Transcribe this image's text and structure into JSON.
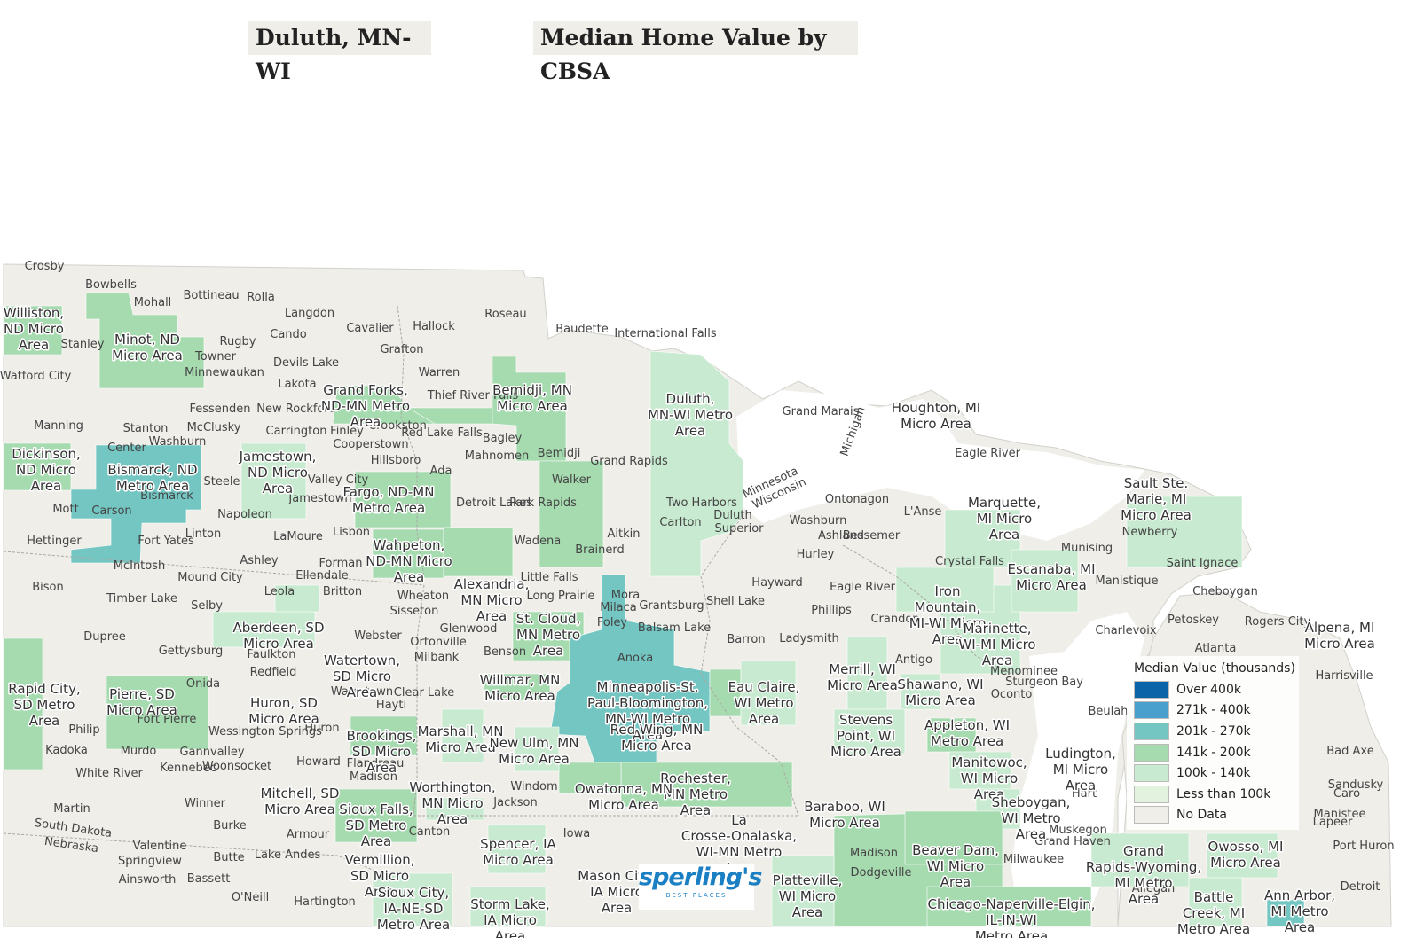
{
  "header": {
    "location": "Duluth, MN-WI",
    "map_title": "Median Home Value by CBSA"
  },
  "legend": {
    "title": "Median Value (thousands)",
    "items": [
      {
        "label": "Over 400k",
        "color": "#0b64a8"
      },
      {
        "label": "271k - 400k",
        "color": "#4aa0cc"
      },
      {
        "label": "201k - 270k",
        "color": "#74c6c2"
      },
      {
        "label": "141k - 200k",
        "color": "#a6dbb0"
      },
      {
        "label": "100k - 140k",
        "color": "#c8ead0"
      },
      {
        "label": "Less than 100k",
        "color": "#e3f2df"
      },
      {
        "label": "No Data",
        "color": "#efeee9"
      }
    ]
  },
  "logo": {
    "name": "sperling's",
    "tagline": "BEST PLACES"
  },
  "colors": {
    "land": "#efeee9",
    "water": "#ffffff",
    "border": "#b9b8b2"
  },
  "cbsa_labels": [
    "Williston, ND Micro Area",
    "Minot, ND Micro Area",
    "Grand Forks, ND-MN Metro Area",
    "Bemidji, MN Micro Area",
    "Duluth, MN-WI Metro Area",
    "Houghton, MI Micro Area",
    "Dickinson, ND Micro Area",
    "Bismarck, ND Metro Area",
    "Jamestown, ND Micro Area",
    "Fargo, ND-MN Metro Area",
    "Wahpeton, ND-MN Micro Area",
    "Alexandria, MN Micro Area",
    "Marquette, MI Micro Area",
    "Sault Ste. Marie, MI Micro Area",
    "Escanaba, MI Micro Area",
    "Iron Mountain, MI-WI Micro Area",
    "Marinette, WI-MI Micro Area",
    "Alpena, MI Micro Area",
    "St. Cloud, MN Metro Area",
    "Aberdeen, SD Micro Area",
    "Watertown, SD Micro Area",
    "Minneapolis-St. Paul-Bloomington, MN-WI Metro Area",
    "Eau Claire, WI Metro Area",
    "Merrill, WI Micro Area",
    "Shawano, WI Micro Area",
    "Rapid City, SD Metro Area",
    "Pierre, SD Micro Area",
    "Huron, SD Micro Area",
    "Brookings, SD Micro Area",
    "Marshall, MN Micro Area",
    "Willmar, MN Micro Area",
    "Red Wing, MN Micro Area",
    "Stevens Point, WI Micro Area",
    "Appleton, WI Metro Area",
    "Ludington, MI Micro Area",
    "New Ulm, MN Micro Area",
    "Rochester, MN Metro Area",
    "Manitowoc, WI Micro Area",
    "Mitchell, SD Micro Area",
    "Sioux Falls, SD Metro Area",
    "Worthington, MN Micro Area",
    "Owatonna, MN Micro Area",
    "Sheboygan, WI Metro Area",
    "Baraboo, WI Micro Area",
    "La Crosse-Onalaska, WI-MN Metro Area",
    "Beaver Dam, WI Micro Area",
    "Grand Rapids-Wyoming, MI Metro Area",
    "Owosso, MI Micro Area",
    "Vermillion, SD Micro Area",
    "Spencer, IA Micro Area",
    "Mason City, IA Micro Area",
    "Platteville, WI Micro Area",
    "Sioux City, IA-NE-SD Metro Area",
    "Storm Lake, IA Micro Area",
    "Chicago-Naperville-Elgin, IL-IN-WI Metro Area",
    "Battle Creek, MI Metro Area",
    "Ann Arbor, MI Metro Area"
  ],
  "place_labels": [
    "Crosby",
    "Bowbells",
    "Mohall",
    "Bottineau",
    "Rolla",
    "Langdon",
    "Roseau",
    "Cavalier",
    "Hallock",
    "Baudette",
    "International Falls",
    "Stanley",
    "Rugby",
    "Cando",
    "Towner",
    "Grafton",
    "Watford City",
    "Devils Lake",
    "Minnewaukan",
    "Warren",
    "Lakota",
    "Thief River Falls",
    "Fessenden",
    "New Rockford",
    "McClusky",
    "Manning",
    "Stanton",
    "Washburn",
    "Carrington",
    "Finley",
    "Crookston",
    "Red Lake Falls",
    "Cooperstown",
    "Bagley",
    "Center",
    "Mahnomen",
    "Bemidji",
    "Hillsboro",
    "Ada",
    "Grand Marais",
    "Grand Rapids",
    "Steele",
    "Valley City",
    "Jamestown",
    "Walker",
    "Mott",
    "Carson",
    "Bismarck",
    "Napoleon",
    "Detroit Lakes",
    "Park Rapids",
    "Two Harbors",
    "Duluth",
    "Superior",
    "Carlton",
    "Washburn",
    "Ashland",
    "Bessemer",
    "Ontonagon",
    "L'Anse",
    "Eagle River",
    "Hettinger",
    "Fort Yates",
    "Linton",
    "LaMoure",
    "Lisbon",
    "Wadena",
    "Aitkin",
    "Brainerd",
    "Hurley",
    "Crystal Falls",
    "Munising",
    "Newberry",
    "Saint Ignace",
    "Cheboygan",
    "Manistique",
    "McIntosh",
    "Ashley",
    "Forman",
    "Mound City",
    "Ellendale",
    "Little Falls",
    "Long Prairie",
    "Mora",
    "Milaca",
    "Foley",
    "Grantsburg",
    "Hayward",
    "Shell Lake",
    "Phillips",
    "Eagle River",
    "Bison",
    "Timber Lake",
    "Selby",
    "Leola",
    "Britton",
    "Wheaton",
    "Sisseton",
    "Glenwood",
    "Balsam Lake",
    "Barron",
    "Ladysmith",
    "Crandon",
    "Petoskey",
    "Rogers City",
    "Charlevoix",
    "Atlanta",
    "Dupree",
    "Gettysburg",
    "Faulkton",
    "Webster",
    "Ortonville",
    "Milbank",
    "Benson",
    "Anoka",
    "Antigo",
    "Menominee",
    "Sturgeon Bay",
    "Oconto",
    "Redfield",
    "Watertown",
    "Clear Lake",
    "Onida",
    "Hayti",
    "Philip",
    "Fort Pierre",
    "Wessington Springs",
    "Huron",
    "Kadoka",
    "Murdo",
    "Gannvalley",
    "Woonsocket",
    "Howard",
    "Flandreau",
    "Madison",
    "White River",
    "Kennebec",
    "Windom",
    "Martin",
    "Winner",
    "Burke",
    "Armour",
    "Lake Andes",
    "Canton",
    "Jackson",
    "Valentine",
    "Springview",
    "Butte",
    "Ainsworth",
    "Bassett",
    "O'Neill",
    "Hartington",
    "Manistee",
    "Hart",
    "Muskegon",
    "Grand Haven",
    "Allegan",
    "Milwaukee",
    "Madison",
    "Dodgeville",
    "Bad Axe",
    "Caro",
    "Sandusky",
    "Lapeer",
    "Port Huron",
    "Detroit",
    "Harrisville",
    "Beulah"
  ],
  "boundary_labels": [
    "Minnesota",
    "Wisconsin",
    "Michigan",
    "South Dakota",
    "Nebraska",
    "Iowa"
  ]
}
